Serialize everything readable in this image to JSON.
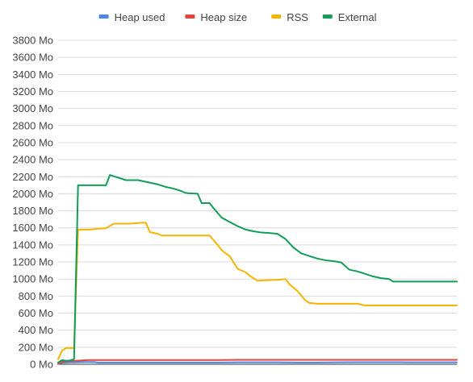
{
  "chart_data": {
    "type": "line",
    "title": "",
    "xlabel": "",
    "ylabel": "",
    "unit": "Mo",
    "ylim": [
      0,
      3800
    ],
    "y_ticks": [
      0,
      200,
      400,
      600,
      800,
      1000,
      1200,
      1400,
      1600,
      1800,
      2000,
      2200,
      2400,
      2600,
      2800,
      3000,
      3200,
      3400,
      3600,
      3800
    ],
    "y_tick_labels": [
      "0 Mo",
      "200 Mo",
      "400 Mo",
      "600 Mo",
      "800 Mo",
      "1000 Mo",
      "1200 Mo",
      "1400 Mo",
      "1600 Mo",
      "1800 Mo",
      "2000 Mo",
      "2200 Mo",
      "2400 Mo",
      "2600 Mo",
      "2800 Mo",
      "3000 Mo",
      "3200 Mo",
      "3400 Mo",
      "3600 Mo",
      "3800 Mo"
    ],
    "grid": true,
    "legend_position": "top",
    "x_tick_labels": [],
    "series": [
      {
        "name": "Heap used",
        "color": "#4a86e8",
        "points": [
          [
            0,
            5
          ],
          [
            1,
            18
          ],
          [
            2,
            20
          ],
          [
            3,
            22
          ],
          [
            4,
            22
          ],
          [
            5,
            24
          ],
          [
            6,
            26
          ],
          [
            7,
            26
          ],
          [
            8,
            26
          ],
          [
            9,
            26
          ],
          [
            10,
            20
          ],
          [
            12,
            20
          ],
          [
            14,
            20
          ],
          [
            16,
            20
          ],
          [
            18,
            20
          ],
          [
            20,
            20
          ],
          [
            25,
            20
          ],
          [
            30,
            20
          ],
          [
            35,
            20
          ],
          [
            40,
            20
          ],
          [
            45,
            22
          ],
          [
            50,
            22
          ],
          [
            55,
            22
          ],
          [
            60,
            20
          ],
          [
            65,
            20
          ],
          [
            70,
            22
          ],
          [
            75,
            24
          ],
          [
            80,
            24
          ],
          [
            85,
            24
          ],
          [
            90,
            22
          ],
          [
            95,
            22
          ],
          [
            100,
            22
          ]
        ]
      },
      {
        "name": "Heap size",
        "color": "#e0463a",
        "points": [
          [
            0,
            5
          ],
          [
            1,
            30
          ],
          [
            2,
            35
          ],
          [
            3,
            38
          ],
          [
            4,
            40
          ],
          [
            5,
            42
          ],
          [
            6,
            45
          ],
          [
            7,
            48
          ],
          [
            8,
            50
          ],
          [
            10,
            50
          ],
          [
            15,
            50
          ],
          [
            20,
            50
          ],
          [
            25,
            50
          ],
          [
            30,
            50
          ],
          [
            35,
            50
          ],
          [
            40,
            50
          ],
          [
            45,
            52
          ],
          [
            50,
            52
          ],
          [
            55,
            52
          ],
          [
            60,
            52
          ],
          [
            65,
            52
          ],
          [
            70,
            52
          ],
          [
            75,
            52
          ],
          [
            80,
            52
          ],
          [
            85,
            52
          ],
          [
            90,
            52
          ],
          [
            95,
            52
          ],
          [
            100,
            52
          ]
        ]
      },
      {
        "name": "RSS",
        "color": "#f5b400",
        "points": [
          [
            0,
            60
          ],
          [
            1,
            160
          ],
          [
            2,
            190
          ],
          [
            3,
            190
          ],
          [
            4,
            190
          ],
          [
            5,
            1580
          ],
          [
            8,
            1580
          ],
          [
            10,
            1590
          ],
          [
            12,
            1595
          ],
          [
            14,
            1650
          ],
          [
            18,
            1650
          ],
          [
            21,
            1660
          ],
          [
            22,
            1660
          ],
          [
            23,
            1550
          ],
          [
            25,
            1530
          ],
          [
            26,
            1510
          ],
          [
            29,
            1510
          ],
          [
            32,
            1510
          ],
          [
            38,
            1510
          ],
          [
            40,
            1400
          ],
          [
            41,
            1340
          ],
          [
            42,
            1300
          ],
          [
            43,
            1270
          ],
          [
            45,
            1120
          ],
          [
            47,
            1080
          ],
          [
            48,
            1040
          ],
          [
            50,
            980
          ],
          [
            52,
            985
          ],
          [
            55,
            990
          ],
          [
            57,
            1000
          ],
          [
            58,
            940
          ],
          [
            60,
            860
          ],
          [
            62,
            750
          ],
          [
            63,
            720
          ],
          [
            65,
            710
          ],
          [
            70,
            710
          ],
          [
            75,
            710
          ],
          [
            77,
            690
          ],
          [
            80,
            690
          ],
          [
            85,
            690
          ],
          [
            90,
            690
          ],
          [
            95,
            690
          ],
          [
            100,
            690
          ]
        ]
      },
      {
        "name": "External",
        "color": "#0f9d58",
        "points": [
          [
            0,
            20
          ],
          [
            1,
            50
          ],
          [
            2,
            40
          ],
          [
            3,
            45
          ],
          [
            4,
            60
          ],
          [
            5,
            2100
          ],
          [
            7,
            2100
          ],
          [
            10,
            2100
          ],
          [
            12,
            2100
          ],
          [
            13,
            2220
          ],
          [
            15,
            2190
          ],
          [
            17,
            2160
          ],
          [
            19,
            2160
          ],
          [
            20,
            2160
          ],
          [
            22,
            2140
          ],
          [
            25,
            2110
          ],
          [
            27,
            2080
          ],
          [
            29,
            2060
          ],
          [
            31,
            2030
          ],
          [
            32,
            2010
          ],
          [
            33,
            2005
          ],
          [
            35,
            2000
          ],
          [
            36,
            1890
          ],
          [
            38,
            1890
          ],
          [
            39,
            1830
          ],
          [
            41,
            1720
          ],
          [
            43,
            1670
          ],
          [
            45,
            1620
          ],
          [
            47,
            1580
          ],
          [
            49,
            1560
          ],
          [
            51,
            1545
          ],
          [
            53,
            1540
          ],
          [
            55,
            1530
          ],
          [
            57,
            1470
          ],
          [
            59,
            1370
          ],
          [
            61,
            1300
          ],
          [
            63,
            1270
          ],
          [
            65,
            1240
          ],
          [
            67,
            1220
          ],
          [
            69,
            1210
          ],
          [
            71,
            1195
          ],
          [
            73,
            1110
          ],
          [
            75,
            1090
          ],
          [
            77,
            1060
          ],
          [
            79,
            1030
          ],
          [
            81,
            1010
          ],
          [
            83,
            1000
          ],
          [
            84,
            970
          ],
          [
            86,
            970
          ],
          [
            90,
            970
          ],
          [
            95,
            970
          ],
          [
            100,
            970
          ]
        ]
      }
    ]
  }
}
